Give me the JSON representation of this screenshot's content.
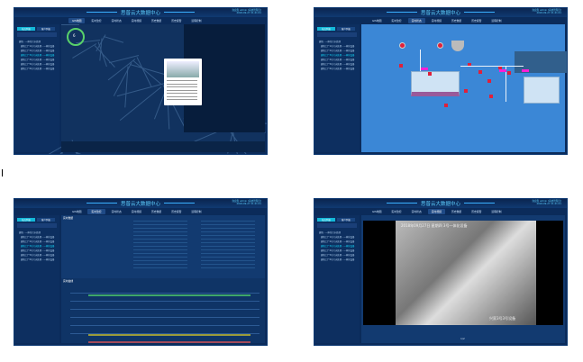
{
  "app": {
    "title": "思普云大数据中心",
    "user": "欢迎您 admin [系统管理员]",
    "datetime": "2018-09-27 21:41:01"
  },
  "tabs": [
    "GIS地图",
    "实时监控",
    "实时状态",
    "实时视频",
    "历史数据",
    "历史报警",
    "远程控制"
  ],
  "sidebar": {
    "button": "站点列表",
    "button2": "客户列表",
    "tree_root": "建筑 - 一体化污水处理",
    "items": [
      "建筑工厂1号污水处理 - 一体化设备",
      "建筑工厂2号污水处理 - 一体化设备",
      "建筑工厂3号污水处理 - 一体化设备",
      "建筑工厂4号污水处理 - 一体化设备",
      "建筑工厂5号污水处理 - 一体化设备",
      "建筑工厂6号污水处理 - 一体化设备"
    ]
  },
  "screens": [
    {
      "active_tab": 0,
      "gauge_value": "6"
    },
    {
      "active_tab": 2
    },
    {
      "active_tab": 1,
      "panel_title": "实时数据",
      "chart_title": "实时曲线"
    },
    {
      "active_tab": 3,
      "video_caption": "2018年09月27日 星期四 3号一体化设备",
      "video_label": "兴家3号3号设备",
      "pager": "1/2"
    }
  ],
  "colors": {
    "bg": "#0b2b5a",
    "accent": "#13b8d8",
    "alarm": "#e0203a",
    "highlight": "#ff1fd6"
  }
}
